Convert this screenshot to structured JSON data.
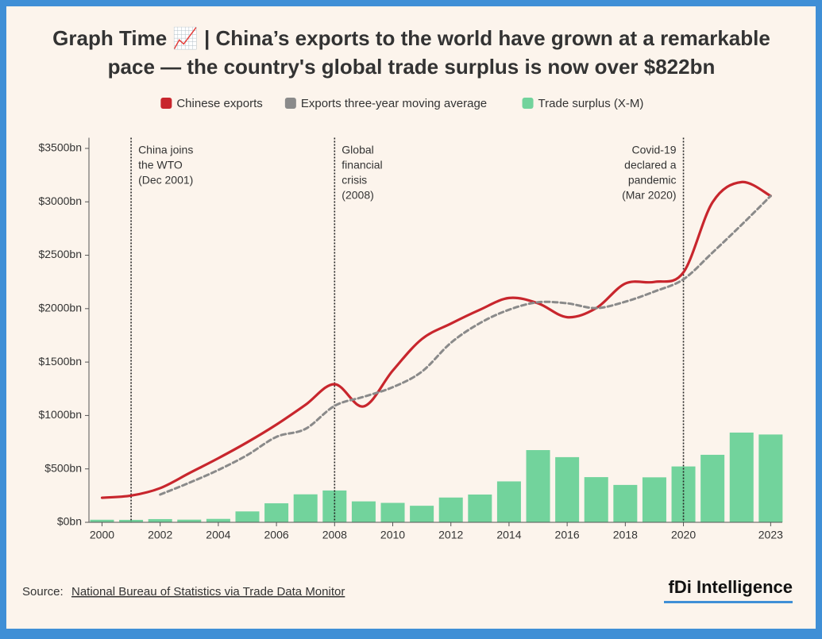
{
  "chart_data": {
    "type": "combo",
    "title": [
      "Graph Time 📈 | China’s exports to the world have grown at a remarkable",
      "pace — the country's global trade surplus is now over $822bn"
    ],
    "x": [
      2000,
      2001,
      2002,
      2003,
      2004,
      2005,
      2006,
      2007,
      2008,
      2009,
      2010,
      2011,
      2012,
      2013,
      2014,
      2015,
      2016,
      2017,
      2018,
      2019,
      2020,
      2021,
      2022,
      2023
    ],
    "series": [
      {
        "name": "Chinese exports",
        "type": "line",
        "color": "#c8262d",
        "dashed": false,
        "values": [
          230,
          250,
          320,
          460,
          600,
          750,
          915,
          1100,
          1293,
          1085,
          1420,
          1715,
          1860,
          1990,
          2100,
          2050,
          1920,
          2005,
          2235,
          2250,
          2340,
          2995,
          3185,
          3055
        ]
      },
      {
        "name": "Exports three-year moving average",
        "type": "line",
        "color": "#8a8a8a",
        "dashed": true,
        "values": [
          null,
          null,
          260,
          370,
          490,
          630,
          800,
          875,
          1090,
          1175,
          1265,
          1410,
          1680,
          1865,
          1990,
          2060,
          2050,
          2005,
          2065,
          2160,
          2275,
          2525,
          2785,
          3055
        ]
      },
      {
        "name": "Trade surplus (X-M)",
        "type": "bar",
        "color": "#72d39c",
        "values": [
          24,
          23,
          30,
          25,
          32,
          102,
          178,
          262,
          298,
          196,
          182,
          155,
          232,
          260,
          383,
          676,
          610,
          423,
          350,
          421,
          523,
          632,
          840,
          822
        ]
      }
    ],
    "xlim": [
      1999.55,
      2023.4
    ],
    "xticks": [
      2000,
      2002,
      2004,
      2006,
      2008,
      2010,
      2012,
      2014,
      2016,
      2018,
      2020,
      2023
    ],
    "ylim": [
      0,
      3600
    ],
    "yticks": [
      {
        "value": 0,
        "label": "$0bn"
      },
      {
        "value": 500,
        "label": "$500bn"
      },
      {
        "value": 1000,
        "label": "$1000bn"
      },
      {
        "value": 1500,
        "label": "$1500bn"
      },
      {
        "value": 2000,
        "label": "$2000bn"
      },
      {
        "value": 2500,
        "label": "$2500bn"
      },
      {
        "value": 3000,
        "label": "$3000bn"
      },
      {
        "value": 3500,
        "label": "$3500bn"
      }
    ],
    "annotations": [
      {
        "x": 2001,
        "lines": [
          "China joins",
          "the WTO",
          "(Dec 2001)"
        ]
      },
      {
        "x": 2008,
        "lines": [
          "Global",
          "financial",
          "crisis",
          "(2008)"
        ]
      },
      {
        "x": 2020,
        "lines": [
          "Covid-19",
          "declared a",
          "pandemic",
          "(Mar 2020)"
        ]
      }
    ],
    "source_label": "Source:",
    "source": "National Bureau of Statistics via Trade Data Monitor",
    "logo": "fDi Intelligence"
  }
}
